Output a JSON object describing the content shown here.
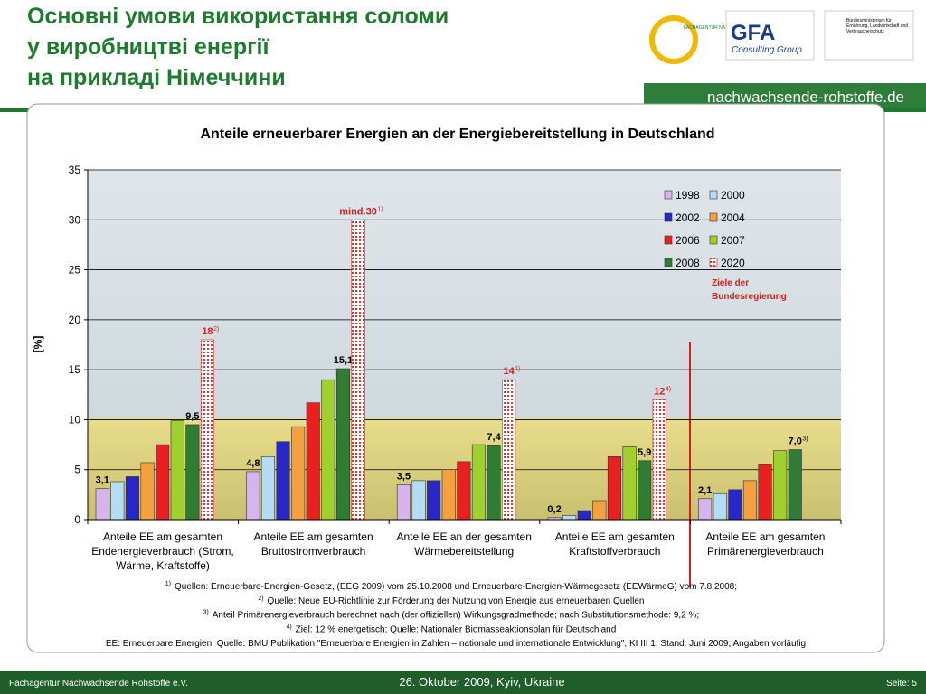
{
  "header": {
    "title_lines": [
      "Основні умови використання соломи",
      "у виробництві енергії",
      "на прикладі Німеччини"
    ],
    "logo1": "FACHAGENTUR NACHWACHSENDE ROHSTOFFE e.V.",
    "logo2_main": "GFA",
    "logo2_sub": "Consulting Group",
    "logo3": "Bundesministerium für Ernährung, Landwirtschaft und Verbraucherschutz",
    "site": "nachwachsende-rohstoffe.de"
  },
  "chart_data": {
    "type": "bar",
    "title": "Anteile erneuerbarer Energien an der Energiebereitstellung in Deutschland",
    "y_label": "[%]",
    "categories": [
      "Anteile EE am gesamten Endenergieverbrauch (Strom, Wärme, Kraftstoffe)",
      "Anteile EE am gesamten Bruttostromverbrauch",
      "Anteile EE an der gesamten Wärmebereitstellung",
      "Anteile EE am gesamten Kraftstoffverbrauch",
      "Anteile EE am gesamten Primärenergieverbrauch"
    ],
    "series": [
      {
        "name": "1998",
        "color": "#d7b4f0",
        "values": [
          3.1,
          4.8,
          3.5,
          0.2,
          2.1
        ],
        "value_labels": [
          "3,1",
          "4,8",
          "3,5",
          "0,2",
          "2,1"
        ]
      },
      {
        "name": "2000",
        "color": "#b4dcf5",
        "values": [
          3.8,
          6.3,
          3.9,
          0.4,
          2.6
        ]
      },
      {
        "name": "2002",
        "color": "#2828c8",
        "values": [
          4.3,
          7.8,
          3.9,
          0.9,
          3.0
        ]
      },
      {
        "name": "2004",
        "color": "#f5a040",
        "values": [
          5.7,
          9.3,
          5.0,
          1.9,
          3.9
        ]
      },
      {
        "name": "2006",
        "color": "#e82020",
        "values": [
          7.5,
          11.7,
          5.8,
          6.3,
          5.5
        ]
      },
      {
        "name": "2007",
        "color": "#a0d030",
        "values": [
          9.9,
          14.0,
          7.5,
          7.3,
          6.9
        ]
      },
      {
        "name": "2008",
        "color": "#2e7d32",
        "values": [
          9.5,
          15.1,
          7.4,
          5.9,
          7.0
        ],
        "value_labels": [
          "9,5",
          "15,1",
          "7,4",
          "5,9",
          "7,0"
        ],
        "value_notes": [
          null,
          null,
          null,
          null,
          "3)"
        ]
      },
      {
        "name": "2020",
        "color": "#e02020",
        "pattern": "dotted",
        "values": [
          18,
          30,
          14,
          12,
          null
        ],
        "value_labels": [
          "18",
          "mind.30",
          "14",
          "12",
          null
        ],
        "value_notes": [
          "2)",
          "1)",
          "1)",
          "4)",
          null
        ]
      }
    ],
    "legend_note": "Ziele der Bundesregierung",
    "ylim": [
      0,
      35
    ],
    "yticks": [
      0,
      5,
      10,
      15,
      20,
      25,
      30,
      35
    ],
    "grid": true,
    "footnotes": [
      {
        "marker": "1)",
        "text": "Quellen: Erneuerbare-Energien-Gesetz, (EEG 2009) vom 25.10.2008 und Erneuerbare-Energien-Wärmegesetz (EEWärmeG) vom 7.8.2008;"
      },
      {
        "marker": "2)",
        "text": "Quelle: Neue EU-Richtlinie zur Förderung der Nutzung von Energie aus erneuerbaren Quellen"
      },
      {
        "marker": "3)",
        "text": "Anteil Primärenergieverbrauch berechnet nach (der offiziellen) Wirkungsgradmethode; nach Substitutionsmethode: 9,2 %;"
      },
      {
        "marker": "4)",
        "text": "Ziel: 12 % energetisch; Quelle: Nationaler Biomasseaktionsplan für Deutschland"
      },
      {
        "marker": null,
        "text": "EE: Erneuerbare Energien; Quelle: BMU Publikation \"Erneuerbare Energien in Zahlen – nationale und internationale Entwicklung\", KI III 1; Stand: Juni 2009; Angaben vorläufig"
      }
    ]
  },
  "footer": {
    "left": "Fachagentur Nachwachsende Rohstoffe e.V.",
    "center": "26. Oktober 2009, Kyiv, Ukraine",
    "right": "Seite: 5"
  }
}
